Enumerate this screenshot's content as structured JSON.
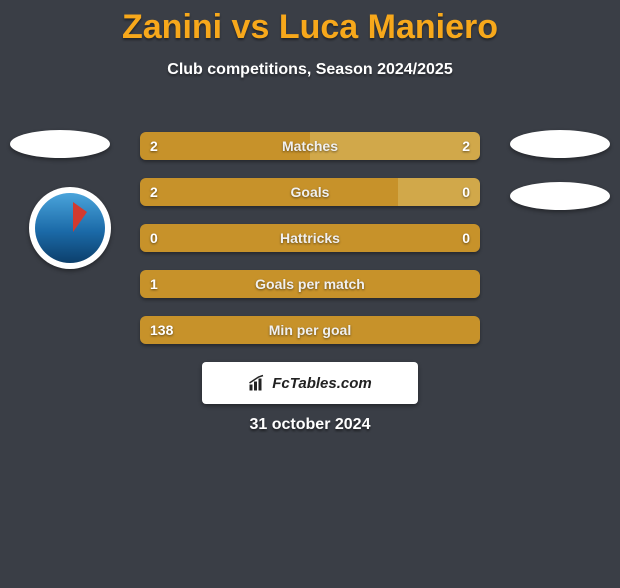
{
  "title": "Zanini vs Luca Maniero",
  "subtitle": "Club competitions, Season 2024/2025",
  "colors": {
    "bar_left": "#c7922a",
    "bar_right": "#d1a84a",
    "bar_neutral": "#c7922a",
    "title": "#f7a81b",
    "bg": "#3a3e46"
  },
  "stats": [
    {
      "label": "Matches",
      "left_val": "2",
      "right_val": "2",
      "left_pct": 50,
      "right_pct": 50
    },
    {
      "label": "Goals",
      "left_val": "2",
      "right_val": "0",
      "left_pct": 76,
      "right_pct": 24
    },
    {
      "label": "Hattricks",
      "left_val": "0",
      "right_val": "0",
      "left_pct": 100,
      "right_pct": 0
    },
    {
      "label": "Goals per match",
      "left_val": "1",
      "right_val": "",
      "left_pct": 100,
      "right_pct": 0
    },
    {
      "label": "Min per goal",
      "left_val": "138",
      "right_val": "",
      "left_pct": 100,
      "right_pct": 0
    }
  ],
  "footer_brand": "FcTables.com",
  "date": "31 october 2024"
}
